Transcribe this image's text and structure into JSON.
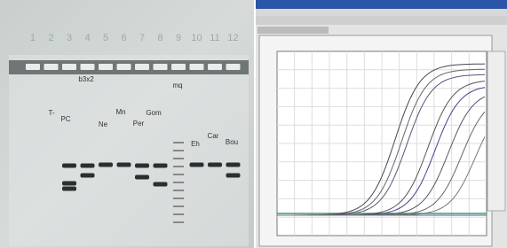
{
  "gel": {
    "lane_numbers": [
      "1",
      "2",
      "3",
      "4",
      "5",
      "6",
      "7",
      "8",
      "9",
      "10",
      "11",
      "12"
    ],
    "lane_labels": [
      "T-",
      "PC",
      "b3x2",
      "Ne",
      "Mn",
      "Per",
      "Gom",
      "mq",
      "Eh",
      "Car",
      "Bou"
    ]
  }
}
